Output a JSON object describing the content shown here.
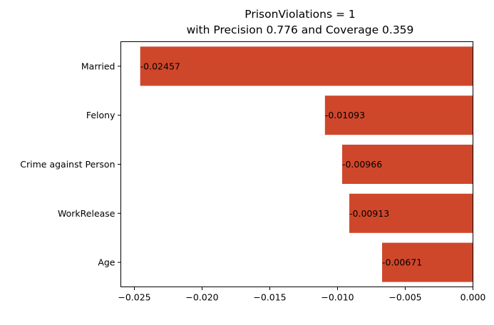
{
  "chart_data": {
    "type": "bar",
    "orientation": "horizontal",
    "title": "PrisonViolations = 1",
    "subtitle": "with Precision 0.776 and Coverage 0.359",
    "categories": [
      "Married",
      "Felony",
      "Crime against Person",
      "WorkRelease",
      "Age"
    ],
    "values": [
      -0.02457,
      -0.01093,
      -0.00966,
      -0.00913,
      -0.00671
    ],
    "data_labels": [
      "-0.02457",
      "-0.01093",
      "-0.00966",
      "-0.00913",
      "-0.00671"
    ],
    "xlim": [
      -0.026,
      0.0
    ],
    "xticks": [
      -0.025,
      -0.02,
      -0.015,
      -0.01,
      -0.005,
      0.0
    ],
    "xtick_labels": [
      "−0.025",
      "−0.020",
      "−0.015",
      "−0.010",
      "−0.005",
      "0.000"
    ],
    "xlabel": "",
    "ylabel": "",
    "grid": false,
    "bar_color": "#cf472b"
  }
}
